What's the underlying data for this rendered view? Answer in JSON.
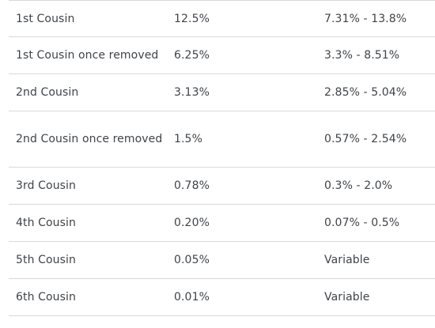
{
  "table": {
    "rows": [
      {
        "relationship": "1st Cousin",
        "average": "12.5%",
        "range": "7.31% - 13.8%"
      },
      {
        "relationship": "1st Cousin once removed",
        "average": "6.25%",
        "range": "3.3% - 8.51%"
      },
      {
        "relationship": "2nd Cousin",
        "average": "3.13%",
        "range": "2.85% - 5.04%"
      },
      {
        "relationship": "2nd Cousin once removed",
        "average": "1.5%",
        "range": "0.57% - 2.54%"
      },
      {
        "relationship": "3rd Cousin",
        "average": "0.78%",
        "range": "0.3% - 2.0%"
      },
      {
        "relationship": "4th Cousin",
        "average": "0.20%",
        "range": "0.07% - 0.5%"
      },
      {
        "relationship": "5th Cousin",
        "average": "0.05%",
        "range": "Variable"
      },
      {
        "relationship": "6th Cousin",
        "average": "0.01%",
        "range": "Variable"
      }
    ]
  },
  "colors": {
    "text": "#3f4348",
    "border": "#d6dadd",
    "background": "#ffffff"
  }
}
